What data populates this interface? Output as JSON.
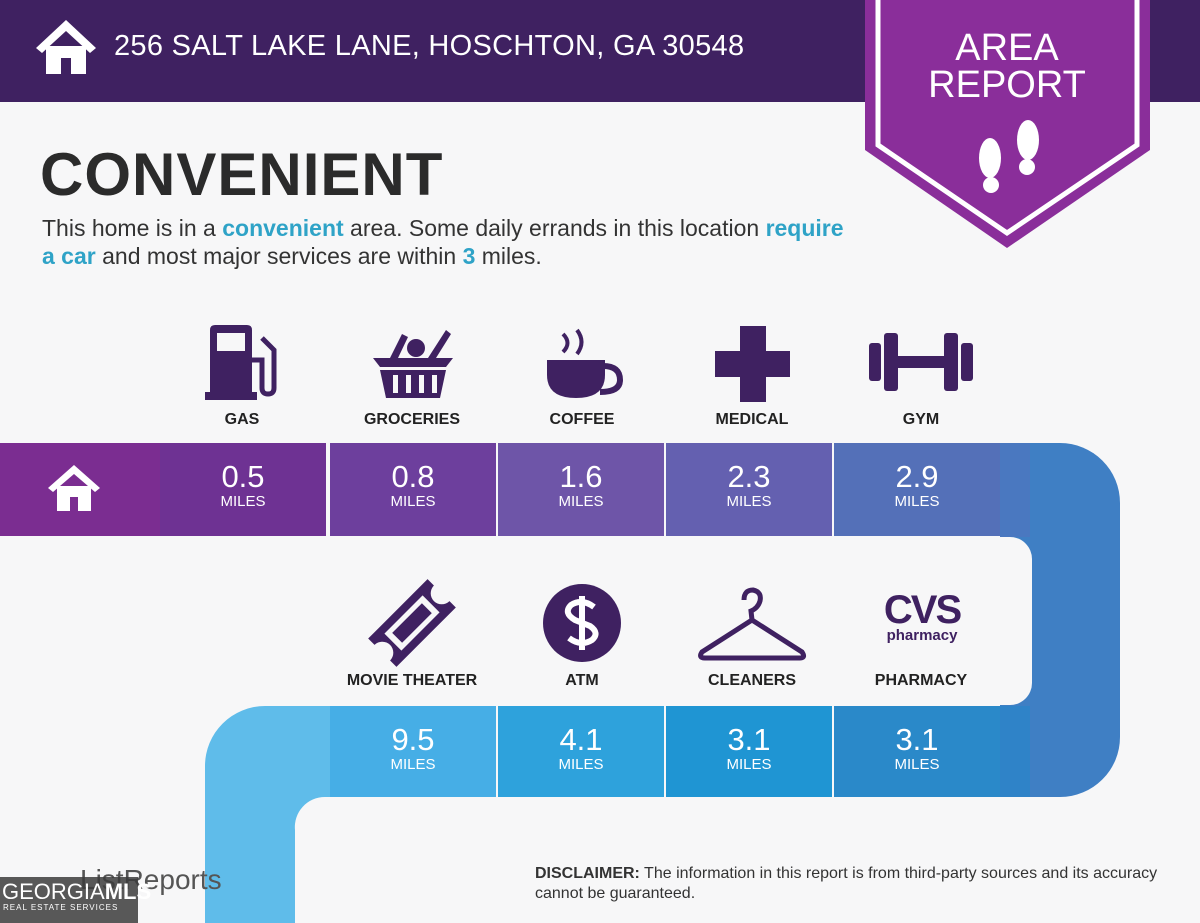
{
  "header": {
    "address": "256 SALT LAKE LANE, HOSCHTON, GA 30548"
  },
  "badge": {
    "line1": "AREA",
    "line2": "REPORT"
  },
  "heading": "CONVENIENT",
  "summary": {
    "parts": [
      {
        "text": "This home is in a ",
        "highlight": false
      },
      {
        "text": "convenient",
        "highlight": true
      },
      {
        "text": " area. Some daily errands in this location ",
        "highlight": false
      },
      {
        "text": "require a car",
        "highlight": true
      },
      {
        "text": " and most major services are within ",
        "highlight": false
      },
      {
        "text": "3",
        "highlight": true
      },
      {
        "text": " miles.",
        "highlight": false
      }
    ]
  },
  "services": [
    {
      "name": "GAS",
      "distance": 0.5,
      "unit": "MILES"
    },
    {
      "name": "GROCERIES",
      "distance": 0.8,
      "unit": "MILES"
    },
    {
      "name": "COFFEE",
      "distance": 1.6,
      "unit": "MILES"
    },
    {
      "name": "MEDICAL",
      "distance": 2.3,
      "unit": "MILES"
    },
    {
      "name": "GYM",
      "distance": 2.9,
      "unit": "MILES"
    },
    {
      "name": "MOVIE THEATER",
      "distance": 9.5,
      "unit": "MILES"
    },
    {
      "name": "ATM",
      "distance": 4.1,
      "unit": "MILES"
    },
    {
      "name": "CLEANERS",
      "distance": 3.1,
      "unit": "MILES"
    },
    {
      "name": "PHARMACY",
      "distance": 3.1,
      "unit": "MILES",
      "logo": {
        "brand": "CVS",
        "sub": "pharmacy"
      }
    }
  ],
  "footer": {
    "brand": "ListReports",
    "disclaimer_label": "DISCLAIMER:",
    "disclaimer": "The information in this report is from third-party sources and its accuracy cannot be guaranteed.",
    "watermark": {
      "left": "GEORGIA",
      "right": "MLS",
      "sub": "REAL ESTATE SERVICES"
    }
  }
}
